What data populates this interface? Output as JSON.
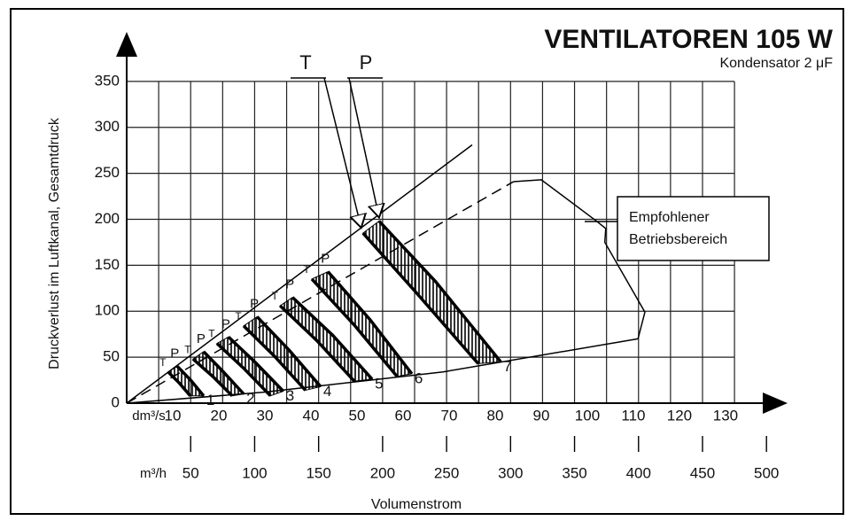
{
  "chart_data": {
    "type": "fan-bands",
    "title": "VENTILATOREN 105 W",
    "subtitle": "Kondensator 2 μF",
    "ylabel": "Druckverlust im Luftkanal, Gesamtdruck",
    "xlabel": "Volumenstrom",
    "x_unit": "dm³/s",
    "x2_unit": "m³/h",
    "xlim": [
      0,
      142.7
    ],
    "x2lim": [
      0,
      513.7
    ],
    "ylim": [
      0,
      400
    ],
    "yticks": [
      0,
      50,
      100,
      150,
      200,
      250,
      300,
      350
    ],
    "xticks": [
      10,
      20,
      30,
      40,
      50,
      60,
      70,
      80,
      90,
      100,
      110,
      120,
      130
    ],
    "x2ticks": [
      50,
      100,
      150,
      200,
      250,
      300,
      350,
      400,
      450,
      500
    ],
    "x2grid": [
      25,
      50,
      75,
      100,
      125,
      150,
      175,
      200,
      225,
      250,
      275,
      300,
      325,
      350,
      375,
      400,
      425,
      450,
      475
    ],
    "grid": true,
    "t_label": "T",
    "p_label": "P",
    "bands": [
      {
        "name": "1",
        "t_x": [
          9,
          11.4,
          13.8
        ],
        "t_y": [
          34,
          22,
          8
        ],
        "p_x": [
          11,
          13.9,
          16.7
        ],
        "p_y": [
          40,
          25,
          8
        ]
      },
      {
        "name": "2",
        "t_x": [
          14.4,
          18.7,
          22.9
        ],
        "t_y": [
          48,
          29,
          8
        ],
        "p_x": [
          16.7,
          21,
          25.4
        ],
        "p_y": [
          56,
          34,
          10
        ]
      },
      {
        "name": "3",
        "t_x": [
          19.6,
          25.4,
          31.2
        ],
        "t_y": [
          65,
          38,
          8
        ],
        "p_x": [
          22.1,
          28,
          34
        ],
        "p_y": [
          72,
          44,
          13
        ]
      },
      {
        "name": "4",
        "t_x": [
          25.4,
          32.1,
          38.8
        ],
        "t_y": [
          84,
          51,
          14
        ],
        "p_x": [
          28.3,
          35.2,
          42.1
        ],
        "p_y": [
          94,
          58,
          18
        ]
      },
      {
        "name": "5",
        "t_x": [
          33.3,
          41.3,
          49.4
        ],
        "t_y": [
          106,
          68,
          24
        ],
        "p_x": [
          36,
          44.7,
          53.3
        ],
        "p_y": [
          115,
          74,
          26
        ]
      },
      {
        "name": "6",
        "t_x": [
          40.2,
          49.4,
          58.7
        ],
        "t_y": [
          135,
          85,
          29
        ],
        "p_x": [
          43.7,
          52.8,
          61.9
        ],
        "p_y": [
          143,
          91,
          32
        ]
      },
      {
        "name": "7",
        "t_x": [
          51.3,
          62.9,
          76.3
        ],
        "t_y": [
          185,
          120,
          43
        ],
        "p_x": [
          54.8,
          67.1,
          81.2
        ],
        "p_y": [
          198,
          132,
          45
        ]
      }
    ],
    "upper_line": {
      "x": [
        0,
        75
      ],
      "y": [
        0,
        281
      ]
    },
    "dashed_line": {
      "x": [
        0,
        84
      ],
      "y": [
        0,
        241
      ]
    },
    "lower_line": {
      "x": [
        0,
        30,
        68.7,
        111
      ],
      "y": [
        0,
        12,
        34,
        70
      ]
    },
    "region": {
      "x": [
        84,
        90,
        102,
        104,
        103.8,
        112.5,
        111
      ],
      "y": [
        241,
        243,
        198,
        190,
        175,
        99,
        70
      ]
    },
    "annotation": [
      "Empfohlener",
      "Betriebsbereich"
    ]
  }
}
